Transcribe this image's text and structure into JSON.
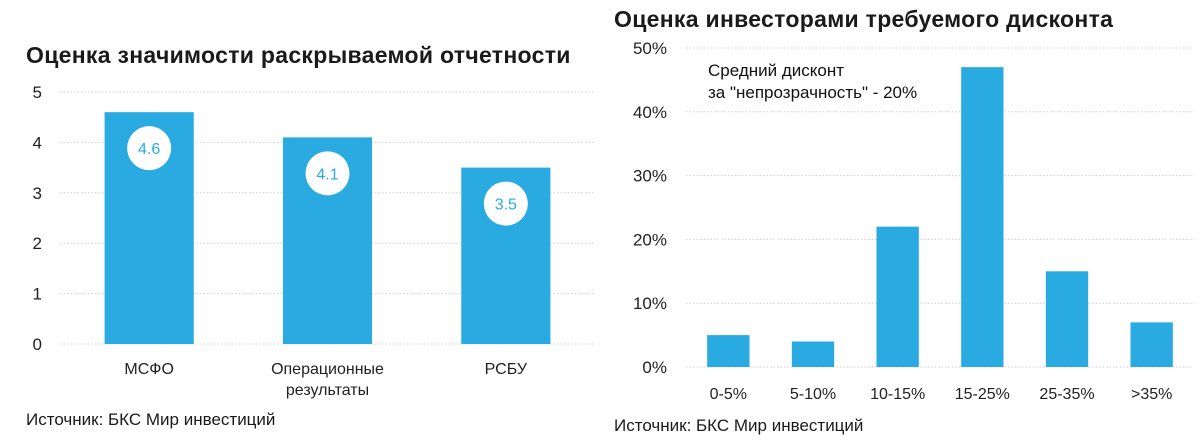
{
  "colors": {
    "bar": "#29abe2",
    "grid": "#cfcfcf",
    "label_bubble": "#ffffff",
    "label_text": "#29a9e1"
  },
  "chart_data": [
    {
      "type": "bar",
      "title": "Оценка значимости раскрываемой отчетности",
      "categories": [
        [
          "МСФО"
        ],
        [
          "Операционные",
          "результаты"
        ],
        [
          "РСБУ"
        ]
      ],
      "values": [
        4.6,
        4.1,
        3.5
      ],
      "data_labels": [
        "4.6",
        "4.1",
        "3.5"
      ],
      "ylim": [
        0,
        5
      ],
      "yticks": [
        "0",
        "1",
        "2",
        "3",
        "4",
        "5"
      ],
      "grid": true,
      "source": "Источник: БКС Мир инвестиций"
    },
    {
      "type": "bar",
      "title": "Оценка инвесторами требуемого дисконта",
      "categories": [
        [
          "0-5%"
        ],
        [
          "5-10%"
        ],
        [
          "10-15%"
        ],
        [
          "15-25%"
        ],
        [
          "25-35%"
        ],
        [
          ">35%"
        ]
      ],
      "values": [
        5,
        4,
        22,
        47,
        15,
        7
      ],
      "ylim": [
        0,
        50
      ],
      "yticks": [
        "0%",
        "10%",
        "20%",
        "30%",
        "40%",
        "50%"
      ],
      "grid": true,
      "annotation": [
        "Средний дисконт",
        "за \"непрозрачность\" - 20%"
      ],
      "source": "Источник: БКС Мир инвестиций"
    }
  ]
}
